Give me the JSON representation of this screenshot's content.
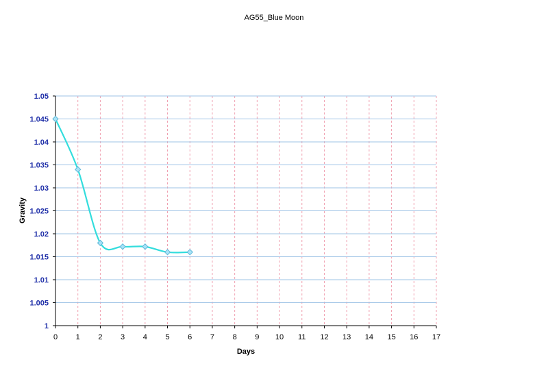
{
  "chart_data": {
    "type": "line",
    "title": "AG55_Blue Moon",
    "xlabel": "Days",
    "ylabel": "Gravity",
    "x_ticks": [
      "0",
      "1",
      "2",
      "3",
      "4",
      "5",
      "6",
      "7",
      "8",
      "9",
      "10",
      "11",
      "12",
      "13",
      "14",
      "15",
      "16",
      "17"
    ],
    "y_ticks": [
      "1",
      "1.005",
      "1.01",
      "1.015",
      "1.02",
      "1.025",
      "1.03",
      "1.035",
      "1.04",
      "1.045",
      "1.05"
    ],
    "xlim": [
      0,
      17
    ],
    "ylim": [
      1.0,
      1.05
    ],
    "grid": true,
    "legend": "none",
    "series": [
      {
        "x": [
          0,
          1,
          2,
          3,
          4,
          5,
          6
        ],
        "y": [
          1.045,
          1.034,
          1.018,
          1.0172,
          1.0172,
          1.016,
          1.016
        ]
      }
    ],
    "colors": {
      "line": "#33dddd",
      "marker_fill": "#a8e3f8",
      "marker_stroke": "#5fb8d8",
      "h_grid": "#9ec3e6",
      "v_grid": "#f0a0b0",
      "axis": "#000000",
      "y_tick_text": "#1f2fa8"
    }
  }
}
